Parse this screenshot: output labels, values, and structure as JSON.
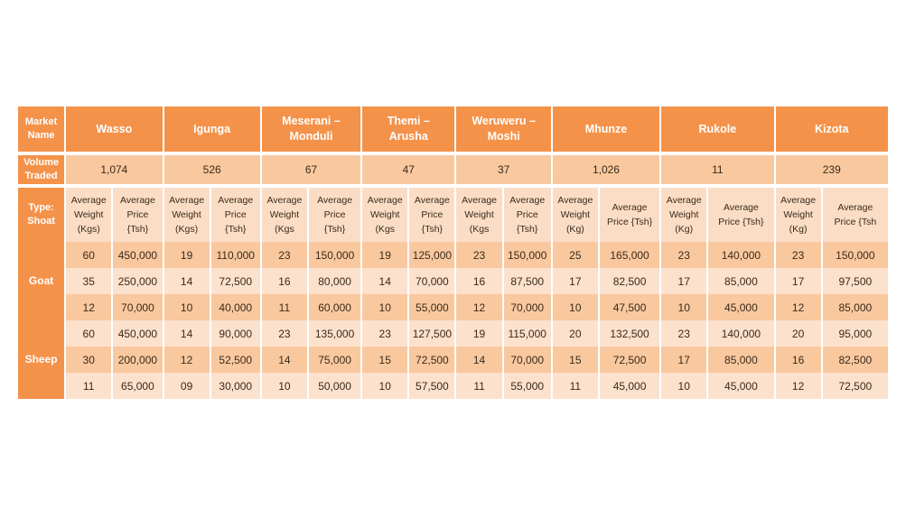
{
  "header_label": "Market\nName",
  "markets": [
    {
      "name": "Wasso",
      "volume": "1,074",
      "weight_label": "Average\nWeight\n(Kgs)",
      "price_label": "Average\nPrice\n{Tsh}"
    },
    {
      "name": "Igunga",
      "volume": "526",
      "weight_label": "Average\nWeight\n(Kgs)",
      "price_label": "Average\nPrice\n{Tsh}"
    },
    {
      "name": "Meserani –\nMonduli",
      "volume": "67",
      "weight_label": "Average\nWeight\n(Kgs",
      "price_label": "Average\nPrice\n{Tsh}"
    },
    {
      "name": "Themi –\nArusha",
      "volume": "47",
      "weight_label": "Average\nWeight\n(Kgs",
      "price_label": "Average\nPrice\n{Tsh}"
    },
    {
      "name": "Weruweru –\nMoshi",
      "volume": "37",
      "weight_label": "Average\nWeight\n(Kgs",
      "price_label": "Average\nPrice\n{Tsh}"
    },
    {
      "name": "Mhunze",
      "volume": "1,026",
      "weight_label": "Average\nWeight\n(Kg)",
      "price_label": "Average\nPrice {Tsh}"
    },
    {
      "name": "Rukole",
      "volume": "11",
      "weight_label": "Average\nWeight\n(Kg)",
      "price_label": "Average\nPrice {Tsh}"
    },
    {
      "name": "Kizota",
      "volume": "239",
      "weight_label": "Average\nWeight\n(Kg)",
      "price_label": "Average\nPrice {Tsh"
    }
  ],
  "volume_label": "Volume\nTraded",
  "type_label": "Type:\nShoat",
  "groups": [
    {
      "label": "Goat",
      "rows": [
        [
          [
            "60",
            "450,000"
          ],
          [
            "19",
            "110,000"
          ],
          [
            "23",
            "150,000"
          ],
          [
            "19",
            "125,000"
          ],
          [
            "23",
            "150,000"
          ],
          [
            "25",
            "165,000"
          ],
          [
            "23",
            "140,000"
          ],
          [
            "23",
            "150,000"
          ]
        ],
        [
          [
            "35",
            "250,000"
          ],
          [
            "14",
            "72,500"
          ],
          [
            "16",
            "80,000"
          ],
          [
            "14",
            "70,000"
          ],
          [
            "16",
            "87,500"
          ],
          [
            "17",
            "82,500"
          ],
          [
            "17",
            "85,000"
          ],
          [
            "17",
            "97,500"
          ]
        ],
        [
          [
            "12",
            "70,000"
          ],
          [
            "10",
            "40,000"
          ],
          [
            "11",
            "60,000"
          ],
          [
            "10",
            "55,000"
          ],
          [
            "12",
            "70,000"
          ],
          [
            "10",
            "47,500"
          ],
          [
            "10",
            "45,000"
          ],
          [
            "12",
            "85,000"
          ]
        ]
      ]
    },
    {
      "label": "Sheep",
      "rows": [
        [
          [
            "60",
            "450,000"
          ],
          [
            "14",
            "90,000"
          ],
          [
            "23",
            "135,000"
          ],
          [
            "23",
            "127,500"
          ],
          [
            "19",
            "115,000"
          ],
          [
            "20",
            "132,500"
          ],
          [
            "23",
            "140,000"
          ],
          [
            "20",
            "95,000"
          ]
        ],
        [
          [
            "30",
            "200,000"
          ],
          [
            "12",
            "52,500"
          ],
          [
            "14",
            "75,000"
          ],
          [
            "15",
            "72,500"
          ],
          [
            "14",
            "70,000"
          ],
          [
            "15",
            "72,500"
          ],
          [
            "17",
            "85,000"
          ],
          [
            "16",
            "82,500"
          ]
        ],
        [
          [
            "11",
            "65,000"
          ],
          [
            "09",
            "30,000"
          ],
          [
            "10",
            "50,000"
          ],
          [
            "10",
            "57,500"
          ],
          [
            "11",
            "55,000"
          ],
          [
            "11",
            "45,000"
          ],
          [
            "10",
            "45,000"
          ],
          [
            "12",
            "72,500"
          ]
        ]
      ]
    }
  ]
}
